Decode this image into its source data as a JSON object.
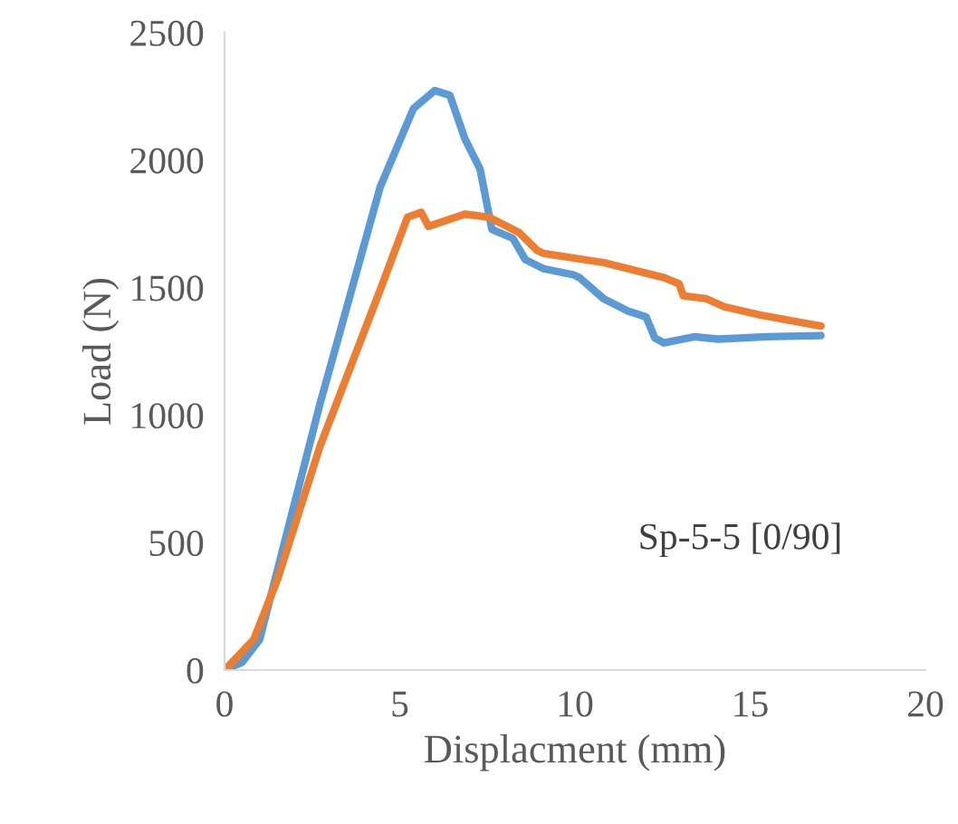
{
  "chart_data": {
    "type": "line",
    "xlabel": "Displacment (mm)",
    "ylabel": "Load (N)",
    "annotations": [
      "Sp-5-5 [0/90]"
    ],
    "xlim": [
      0,
      20
    ],
    "ylim": [
      0,
      2500
    ],
    "xticks": [
      0,
      5,
      10,
      15,
      20
    ],
    "yticks": [
      0,
      500,
      1000,
      1500,
      2000,
      2500
    ],
    "grid": false,
    "legend": false,
    "series": [
      {
        "color": "#5b9bd5",
        "x": [
          0,
          0.5,
          1.0,
          2.72,
          4.44,
          5.39,
          6.0,
          6.43,
          6.86,
          7.29,
          7.63,
          8.23,
          8.58,
          9.1,
          9.96,
          10.13,
          10.82,
          11.51,
          12.03,
          12.28,
          12.54,
          13.4,
          14.09,
          15.47,
          17.02
        ],
        "values": [
          0,
          30,
          119,
          1042,
          1894,
          2202,
          2273,
          2254,
          2083,
          1965,
          1728,
          1693,
          1610,
          1574,
          1550,
          1539,
          1456,
          1408,
          1385,
          1302,
          1283,
          1307,
          1298,
          1307,
          1312
        ]
      },
      {
        "color": "#ed7d31",
        "x": [
          0,
          0.83,
          1.51,
          2.72,
          4.44,
          5.22,
          5.61,
          5.82,
          6.86,
          7.55,
          8.4,
          8.92,
          9.1,
          10.82,
          12.54,
          12.97,
          13.09,
          13.75,
          14.26,
          15.3,
          17.02
        ],
        "values": [
          0,
          119,
          355,
          876,
          1491,
          1776,
          1795,
          1740,
          1788,
          1776,
          1716,
          1646,
          1634,
          1598,
          1539,
          1515,
          1468,
          1456,
          1425,
          1392,
          1349
        ]
      }
    ]
  }
}
